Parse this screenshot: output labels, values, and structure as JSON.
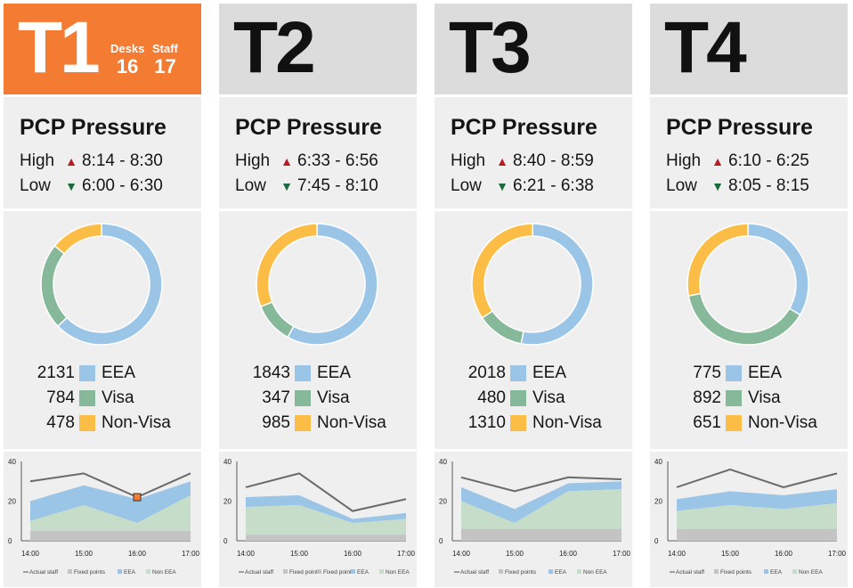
{
  "terminals": [
    {
      "id": "T1",
      "highlight": true,
      "desks_label": "Desks",
      "desks": "16",
      "staff_label": "Staff",
      "staff": "17",
      "pcp_title": "PCP Pressure",
      "high_label": "High",
      "high_range": "8:14 - 8:30",
      "low_label": "Low",
      "low_range": "6:00 - 6:30",
      "breakdown": [
        {
          "value": "2131",
          "name": "EEA"
        },
        {
          "value": "784",
          "name": "Visa"
        },
        {
          "value": "478",
          "name": "Non-Visa"
        }
      ]
    },
    {
      "id": "T2",
      "highlight": false,
      "pcp_title": "PCP Pressure",
      "high_label": "High",
      "high_range": "6:33 - 6:56",
      "low_label": "Low",
      "low_range": "7:45 - 8:10",
      "breakdown": [
        {
          "value": "1843",
          "name": "EEA"
        },
        {
          "value": "347",
          "name": "Visa"
        },
        {
          "value": "985",
          "name": "Non-Visa"
        }
      ]
    },
    {
      "id": "T3",
      "highlight": false,
      "pcp_title": "PCP Pressure",
      "high_label": "High",
      "high_range": "8:40 - 8:59",
      "low_label": "Low",
      "low_range": "6:21 - 6:38",
      "breakdown": [
        {
          "value": "2018",
          "name": "EEA"
        },
        {
          "value": "480",
          "name": "Visa"
        },
        {
          "value": "1310",
          "name": "Non-Visa"
        }
      ]
    },
    {
      "id": "T4",
      "highlight": false,
      "pcp_title": "PCP Pressure",
      "high_label": "High",
      "high_range": "6:10 - 6:25",
      "low_label": "Low",
      "low_range": "8:05 - 8:15",
      "breakdown": [
        {
          "value": "775",
          "name": "EEA"
        },
        {
          "value": "892",
          "name": "Visa"
        },
        {
          "value": "651",
          "name": "Non-Visa"
        }
      ]
    }
  ],
  "colors": {
    "eea": "#9ac5e6",
    "visa": "#86b89a",
    "non_visa": "#fbbd45",
    "accent": "#f47b32",
    "actual_staff": "#6a6a6a",
    "fixed_points": "#c4c4c4",
    "non_eea_area": "#c5ddc9"
  },
  "chart_data": [
    {
      "type": "area",
      "x": [
        "14:00",
        "15:00",
        "16:00",
        "17:00"
      ],
      "yticks": [
        "40",
        "20",
        "0"
      ],
      "ylim": [
        0,
        40
      ],
      "legend": [
        "Actual staff",
        "Fixed points",
        "EEA",
        "Non EEA"
      ],
      "series": [
        {
          "name": "Fixed points",
          "values": [
            5,
            5,
            5,
            5
          ]
        },
        {
          "name": "Non EEA",
          "values": [
            5,
            13,
            4,
            18
          ]
        },
        {
          "name": "EEA",
          "values": [
            10,
            10,
            12,
            7
          ]
        },
        {
          "name": "Actual staff",
          "values": [
            30,
            34,
            22,
            34
          ]
        }
      ],
      "marker": {
        "x": "16:00",
        "y": 22
      }
    },
    {
      "type": "area",
      "x": [
        "14:00",
        "15:00",
        "16:00",
        "17:00"
      ],
      "yticks": [
        "40",
        "20",
        "0"
      ],
      "ylim": [
        0,
        40
      ],
      "legend": [
        "Actual staff",
        "Fixed points",
        "Fixed points",
        "EEA",
        "Non EEA"
      ],
      "series": [
        {
          "name": "Fixed points",
          "values": [
            3,
            3,
            3,
            3
          ]
        },
        {
          "name": "Non EEA",
          "values": [
            14,
            15,
            6,
            8
          ]
        },
        {
          "name": "EEA",
          "values": [
            5,
            5,
            2,
            3
          ]
        },
        {
          "name": "Actual staff",
          "values": [
            27,
            34,
            15,
            21
          ]
        }
      ]
    },
    {
      "type": "area",
      "x": [
        "14:00",
        "15:00",
        "16:00",
        "17:00"
      ],
      "yticks": [
        "40",
        "20",
        "0"
      ],
      "ylim": [
        0,
        40
      ],
      "legend": [
        "Actual staff",
        "Fixed points",
        "EEA",
        "Non EEA"
      ],
      "series": [
        {
          "name": "Fixed points",
          "values": [
            6,
            6,
            6,
            6
          ]
        },
        {
          "name": "Non EEA",
          "values": [
            14,
            3,
            19,
            20
          ]
        },
        {
          "name": "EEA",
          "values": [
            7,
            7,
            4,
            4
          ]
        },
        {
          "name": "Actual staff",
          "values": [
            32,
            25,
            32,
            31
          ]
        }
      ]
    },
    {
      "type": "area",
      "x": [
        "14:00",
        "15:00",
        "16:00",
        "17:00"
      ],
      "yticks": [
        "40",
        "20",
        "0"
      ],
      "ylim": [
        0,
        40
      ],
      "legend": [
        "Actual staff",
        "Fixed points",
        "EEA",
        "Non EEA"
      ],
      "series": [
        {
          "name": "Fixed points",
          "values": [
            6,
            6,
            6,
            6
          ]
        },
        {
          "name": "Non EEA",
          "values": [
            9,
            12,
            10,
            13
          ]
        },
        {
          "name": "EEA",
          "values": [
            6,
            7,
            7,
            7
          ]
        },
        {
          "name": "Actual staff",
          "values": [
            27,
            36,
            27,
            34
          ]
        }
      ]
    }
  ]
}
